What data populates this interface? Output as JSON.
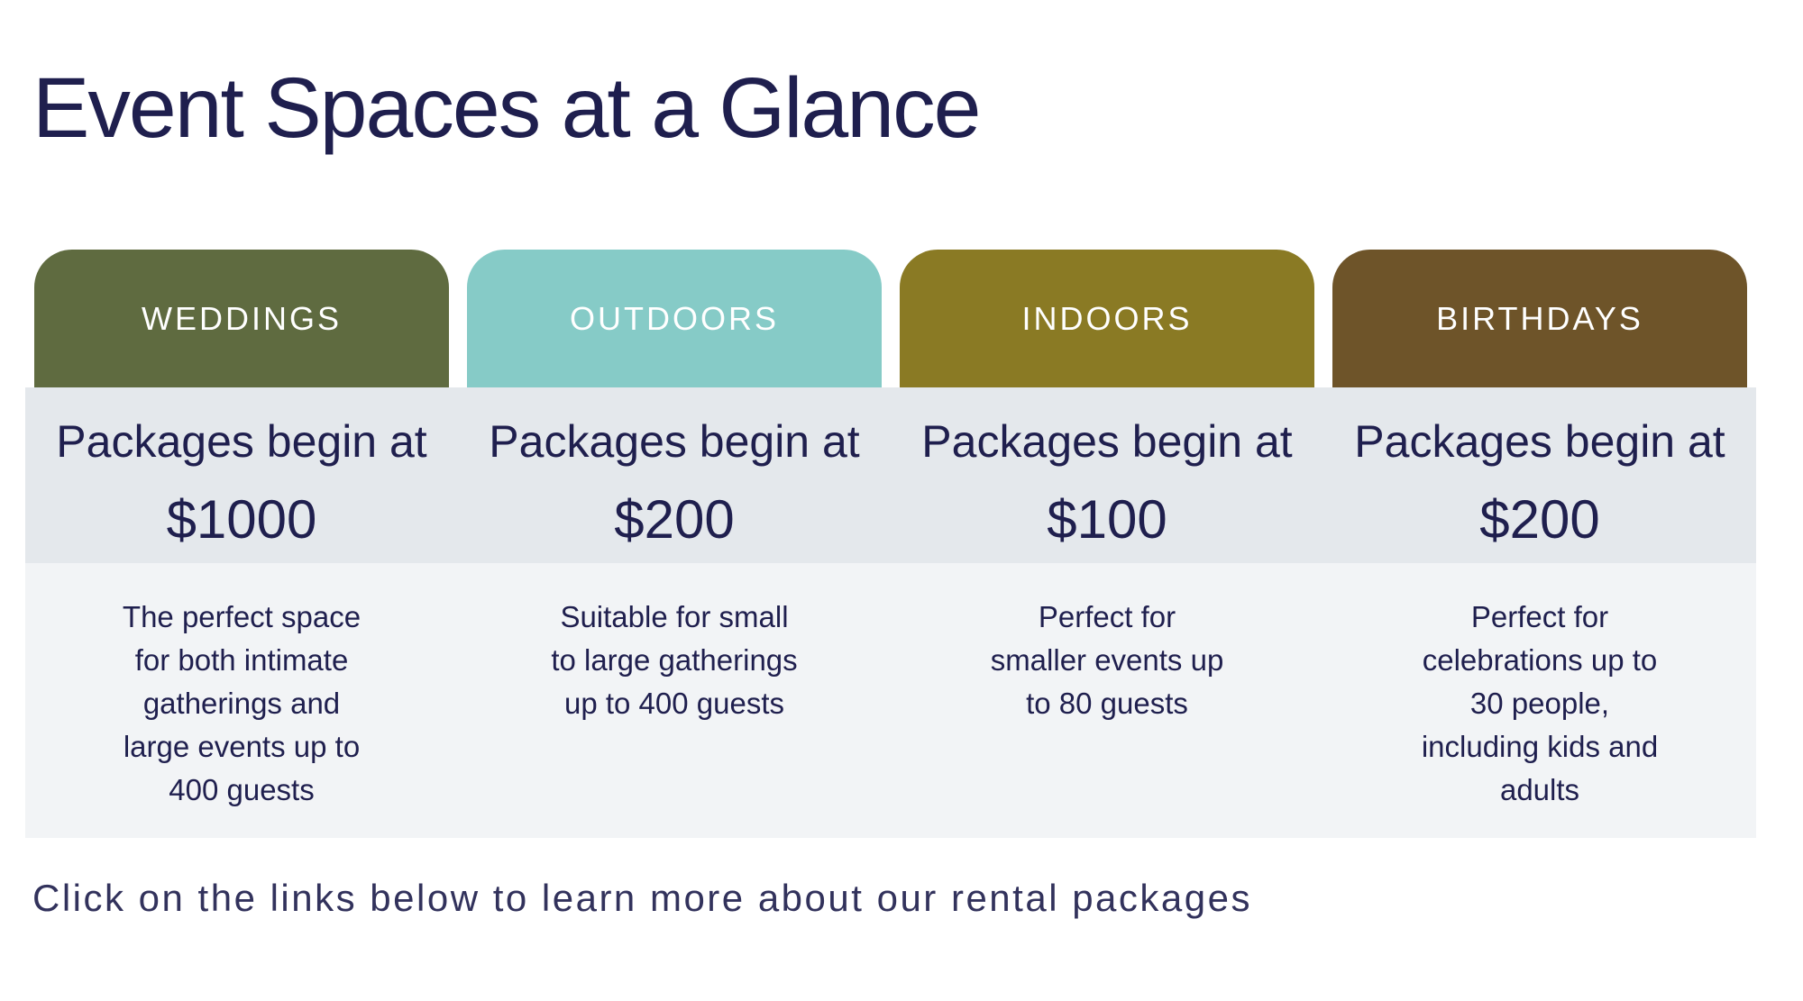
{
  "title": "Event Spaces at a Glance",
  "footer": "Click on the links below to learn more about our rental packages",
  "table": {
    "columns": [
      {
        "label": "WEDDINGS",
        "header_color": "#5f6b40",
        "price_prefix": "Packages begin at",
        "price": "$1000",
        "description": "The perfect space\nfor both intimate\ngatherings and\nlarge events up to\n400 guests"
      },
      {
        "label": "OUTDOORS",
        "header_color": "#86cbc7",
        "price_prefix": "Packages begin at",
        "price": "$200",
        "description": "Suitable for small\nto large gatherings\nup to 400 guests"
      },
      {
        "label": "INDOORS",
        "header_color": "#8a7a24",
        "price_prefix": "Packages begin at",
        "price": "$100",
        "description": "Perfect for\nsmaller events up\nto 80 guests"
      },
      {
        "label": "BIRTHDAYS",
        "header_color": "#6e5429",
        "price_prefix": "Packages begin at",
        "price": "$200",
        "description": "Perfect for\ncelebrations up to\n30 people,\nincluding kids and\nadults"
      }
    ]
  },
  "colors": {
    "text_navy": "#1f1f4e",
    "price_band": "#e4e8ec",
    "description_band": "#f2f4f6",
    "background": "#ffffff"
  }
}
